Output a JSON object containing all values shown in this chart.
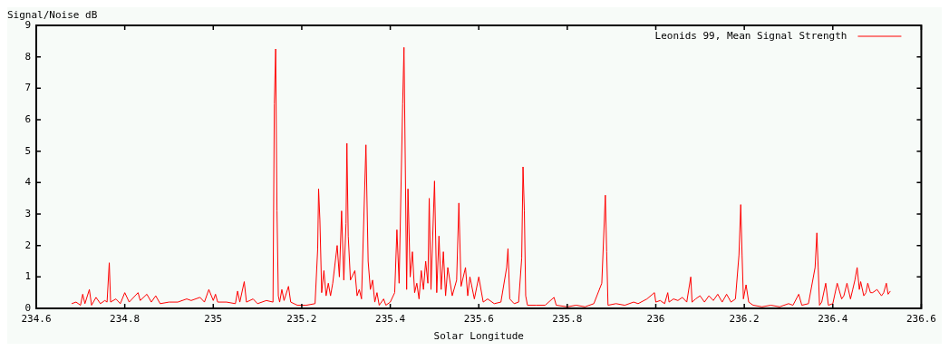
{
  "chart_data": {
    "type": "line",
    "xlabel": "Solar Longitude",
    "ylabel": "Signal/Noise dB",
    "legend": "top right",
    "xlim": [
      234.6,
      236.6
    ],
    "xticks": [
      234.6,
      234.8,
      235,
      235.2,
      235.4,
      235.6,
      235.8,
      236,
      236.2,
      236.4,
      236.6
    ],
    "ylim": [
      0,
      9
    ],
    "yticks": [
      0,
      1,
      2,
      3,
      4,
      5,
      6,
      7,
      8,
      9
    ],
    "x": [
      234.68,
      234.69,
      234.7,
      234.705,
      234.71,
      234.72,
      234.725,
      234.735,
      234.745,
      234.755,
      234.76,
      234.765,
      234.768,
      234.78,
      234.79,
      234.8,
      234.81,
      234.83,
      234.835,
      234.85,
      234.86,
      234.87,
      234.88,
      234.9,
      234.92,
      234.94,
      234.95,
      234.97,
      234.98,
      234.99,
      235,
      235.005,
      235.01,
      235.03,
      235.05,
      235.055,
      235.06,
      235.07,
      235.075,
      235.09,
      235.1,
      235.12,
      235.135,
      235.138,
      235.141,
      235.144,
      235.147,
      235.15,
      235.155,
      235.16,
      235.17,
      235.175,
      235.19,
      235.21,
      235.23,
      235.236,
      235.238,
      235.241,
      235.245,
      235.25,
      235.255,
      235.26,
      235.265,
      235.27,
      235.28,
      235.285,
      235.29,
      235.295,
      235.3,
      235.302,
      235.305,
      235.31,
      235.32,
      235.325,
      235.33,
      235.335,
      235.345,
      235.35,
      235.355,
      235.36,
      235.365,
      235.37,
      235.375,
      235.385,
      235.39,
      235.4,
      235.41,
      235.415,
      235.42,
      235.428,
      235.431,
      235.434,
      235.437,
      235.44,
      235.445,
      235.45,
      235.455,
      235.46,
      235.465,
      235.47,
      235.475,
      235.48,
      235.485,
      235.488,
      235.492,
      235.5,
      235.505,
      235.51,
      235.515,
      235.52,
      235.525,
      235.53,
      235.54,
      235.55,
      235.555,
      235.56,
      235.57,
      235.575,
      235.58,
      235.59,
      235.6,
      235.61,
      235.62,
      235.635,
      235.65,
      235.663,
      235.666,
      235.67,
      235.68,
      235.69,
      235.697,
      235.7,
      235.703,
      235.706,
      235.71,
      235.73,
      235.75,
      235.77,
      235.775,
      235.8,
      235.82,
      235.84,
      235.86,
      235.878,
      235.886,
      235.889,
      235.892,
      235.91,
      235.93,
      235.95,
      235.96,
      235.98,
      235.997,
      236,
      236.01,
      236.02,
      236.027,
      236.03,
      236.04,
      236.05,
      236.06,
      236.07,
      236.079,
      236.082,
      236.09,
      236.1,
      236.11,
      236.12,
      236.13,
      236.14,
      236.15,
      236.16,
      236.17,
      236.18,
      236.188,
      236.192,
      236.195,
      236.198,
      236.204,
      236.21,
      236.22,
      236.24,
      236.26,
      236.28,
      236.3,
      236.31,
      236.323,
      236.33,
      236.345,
      236.36,
      236.364,
      236.367,
      236.37,
      236.375,
      236.384,
      236.39,
      236.4,
      236.41,
      236.42,
      236.425,
      236.432,
      236.44,
      236.445,
      236.45,
      236.455,
      236.46,
      236.463,
      236.47,
      236.475,
      236.479,
      236.485,
      236.49,
      236.5,
      236.51,
      236.515,
      236.521,
      236.525,
      236.53
    ],
    "series": [
      {
        "name": "Leonids 99, Mean Signal Strength",
        "color": "#ff0000",
        "values": [
          0.15,
          0.2,
          0.1,
          0.45,
          0.15,
          0.6,
          0.1,
          0.35,
          0.15,
          0.25,
          0.2,
          1.45,
          0.2,
          0.3,
          0.15,
          0.5,
          0.2,
          0.5,
          0.25,
          0.45,
          0.2,
          0.4,
          0.15,
          0.2,
          0.2,
          0.3,
          0.25,
          0.35,
          0.2,
          0.6,
          0.25,
          0.45,
          0.2,
          0.2,
          0.15,
          0.55,
          0.2,
          0.85,
          0.2,
          0.3,
          0.15,
          0.25,
          0.2,
          6.5,
          8.25,
          3.1,
          0.4,
          0.2,
          0.6,
          0.25,
          0.7,
          0.2,
          0.1,
          0.1,
          0.15,
          1.9,
          3.8,
          2.8,
          0.5,
          1.2,
          0.4,
          0.8,
          0.4,
          0.8,
          2,
          1,
          3.1,
          0.9,
          2.7,
          5.25,
          2.3,
          0.9,
          1.2,
          0.4,
          0.6,
          0.3,
          5.2,
          1.5,
          0.6,
          0.9,
          0.2,
          0.5,
          0.1,
          0.3,
          0.1,
          0.2,
          0.5,
          2.5,
          0.8,
          6.5,
          8.3,
          4.5,
          0.6,
          3.8,
          1,
          1.8,
          0.5,
          0.8,
          0.3,
          1.2,
          0.6,
          1.5,
          0.8,
          3.5,
          0.6,
          4.05,
          0.5,
          2.3,
          0.6,
          1.8,
          0.4,
          1.3,
          0.4,
          0.9,
          3.35,
          0.7,
          1.3,
          0.4,
          1,
          0.3,
          1,
          0.2,
          0.3,
          0.15,
          0.2,
          1.3,
          1.9,
          0.3,
          0.15,
          0.2,
          1.6,
          4.5,
          3.1,
          0.4,
          0.1,
          0.1,
          0.1,
          0.35,
          0.1,
          0.05,
          0.1,
          0.05,
          0.15,
          0.8,
          3.6,
          1.8,
          0.1,
          0.15,
          0.1,
          0.2,
          0.15,
          0.3,
          0.5,
          0.2,
          0.25,
          0.15,
          0.5,
          0.2,
          0.3,
          0.25,
          0.35,
          0.2,
          1,
          0.2,
          0.3,
          0.4,
          0.2,
          0.4,
          0.25,
          0.45,
          0.2,
          0.45,
          0.2,
          0.3,
          1.7,
          3.3,
          1.7,
          0.3,
          0.75,
          0.2,
          0.1,
          0.05,
          0.1,
          0.05,
          0.15,
          0.1,
          0.45,
          0.1,
          0.15,
          1.3,
          2.4,
          1.3,
          0.1,
          0.2,
          0.8,
          0.1,
          0.15,
          0.8,
          0.3,
          0.4,
          0.8,
          0.3,
          0.6,
          0.9,
          1.3,
          0.6,
          0.85,
          0.4,
          0.5,
          0.8,
          0.5,
          0.5,
          0.6,
          0.4,
          0.5,
          0.8,
          0.45,
          0.55
        ]
      }
    ]
  }
}
